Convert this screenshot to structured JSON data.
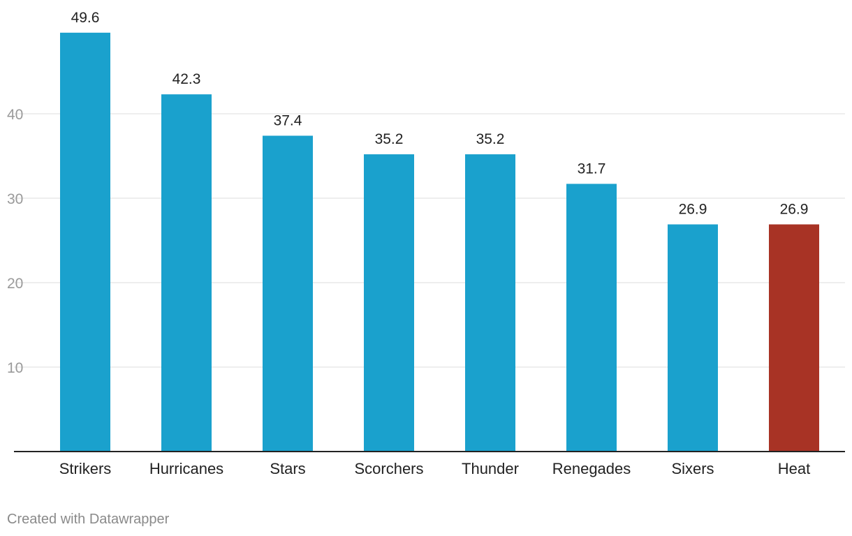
{
  "chart_data": {
    "type": "bar",
    "title": "",
    "xlabel": "",
    "ylabel": "",
    "categories": [
      "Strikers",
      "Hurricanes",
      "Stars",
      "Scorchers",
      "Thunder",
      "Renegades",
      "Sixers",
      "Heat"
    ],
    "values": [
      49.6,
      42.3,
      37.4,
      35.2,
      35.2,
      31.7,
      26.9,
      26.9
    ],
    "value_labels": [
      "49.6",
      "42.3",
      "37.4",
      "35.2",
      "35.2",
      "31.7",
      "26.9",
      "26.9"
    ],
    "highlight_category": "Heat",
    "ylim": [
      0,
      50
    ],
    "yticks": [
      10,
      20,
      30,
      40
    ],
    "ytick_labels": [
      "10",
      "20",
      "30",
      "40"
    ],
    "grid": true,
    "legend": "none"
  },
  "colors": {
    "bar": "#1aa1cd",
    "highlight": "#a83325",
    "grid": "#dddddd",
    "axis": "#222222",
    "tick_text": "#9a9a9a",
    "label_text": "#222222"
  },
  "footer": {
    "credit": "Created with Datawrapper"
  }
}
